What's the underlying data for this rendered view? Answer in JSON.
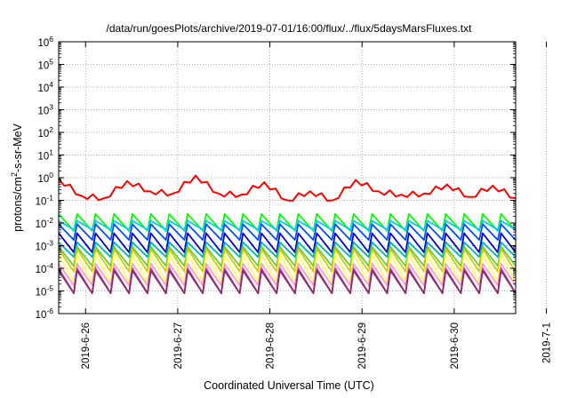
{
  "chart_data": {
    "type": "line",
    "title": "/data/run/goesPlots/archive/2019-07-01/16:00/flux/../flux/5daysMarsFluxes.txt",
    "xlabel": "Coordinated Universal Time (UTC)",
    "ylabel": "protons/cm2-s-sr-MeV",
    "y_scale": "log",
    "ylim_exponent": [
      -6,
      6
    ],
    "y_tick_labels": [
      "10-6",
      "10-5",
      "10-4",
      "10-3",
      "10-2",
      "10-1",
      "100",
      "101",
      "102",
      "103",
      "104",
      "105",
      "106"
    ],
    "x_unit": "day",
    "x_range_days": [
      "2019-06-25 17:00",
      "2019-07-01 16:00"
    ],
    "x_tick_labels": [
      "2019-6-26",
      "2019-6-27",
      "2019-6-28",
      "2019-6-29",
      "2019-6-30",
      "2019-7-1"
    ],
    "grid": true,
    "series": [
      {
        "color": "#ff0000",
        "values_log10": [
          -0.05,
          -0.8,
          -0.9,
          -0.15,
          -0.6,
          -0.7,
          0.1,
          -0.7,
          -0.75,
          -0.2,
          -1.0,
          -0.6,
          -1.0,
          -0.1,
          -0.6,
          -0.75,
          -0.7,
          -0.3,
          -0.85,
          -0.35,
          -0.9
        ]
      },
      {
        "color": "#00ff00",
        "band_log10": [
          -2.45,
          -1.6
        ]
      },
      {
        "color": "#00c8ff",
        "band_log10": [
          -2.3,
          -1.9
        ]
      },
      {
        "color": "#0050ff",
        "band_log10": [
          -2.85,
          -2.05
        ]
      },
      {
        "color": "#0000c8",
        "band_log10": [
          -3.3,
          -2.45
        ]
      },
      {
        "color": "#00b4b4",
        "band_log10": [
          -3.6,
          -2.85
        ]
      },
      {
        "color": "#66cc33",
        "band_log10": [
          -3.9,
          -3.05
        ]
      },
      {
        "color": "#cccc00",
        "band_log10": [
          -4.25,
          -3.15
        ]
      },
      {
        "color": "#ffff66",
        "band_log10": [
          -4.6,
          -3.4
        ]
      },
      {
        "color": "#ff99cc",
        "band_log10": [
          -4.85,
          -3.8
        ]
      },
      {
        "color": "#aa55aa",
        "band_log10": [
          -5.1,
          -4.0
        ]
      },
      {
        "color": "#8b2d6b",
        "band_log10": [
          -5.2,
          -4.1
        ]
      }
    ]
  }
}
